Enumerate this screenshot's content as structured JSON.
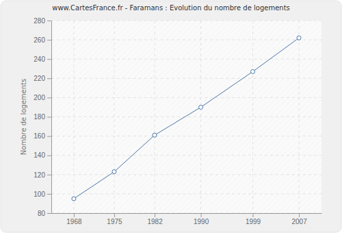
{
  "chart_data": {
    "type": "line",
    "title": "www.CartesFrance.fr - Faramans : Evolution du nombre de logements",
    "y_label": "Nombre de logements",
    "x": [
      1968,
      1975,
      1982,
      1990,
      1999,
      2007
    ],
    "values": [
      95,
      123,
      161,
      190,
      227,
      262
    ],
    "color": "#4a77aa",
    "marker": "circle",
    "xlim": [
      1964.1,
      2010.9
    ],
    "xticks": [
      1968,
      1975,
      1982,
      1990,
      1999,
      2007
    ],
    "ylim": [
      80,
      280
    ],
    "yticks": [
      80,
      100,
      120,
      140,
      160,
      180,
      200,
      220,
      240,
      260,
      280
    ],
    "grid": true
  }
}
